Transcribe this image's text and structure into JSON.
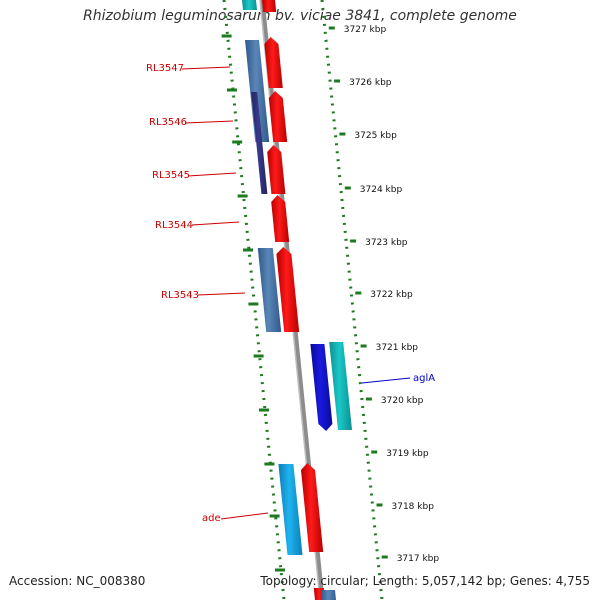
{
  "title": "Rhizobium leguminosarum bv. viciae 3841, complete genome",
  "accession": "Accession: NC_008380",
  "topology": "Topology: circular; Length: 5,057,142 bp; Genes: 4,755",
  "colors": {
    "gene_red": "#ff1a1a",
    "steelblue": "#5a86b8",
    "navy": "#3a3a8c",
    "cyan": "#19c8c8",
    "skyblue": "#1fb4f0",
    "blue": "#1a1ae0",
    "backbone": "#8c8c8c",
    "tick_green": "#1e7a1e",
    "label_red": "#cc0000",
    "label_blue": "#0000cc"
  },
  "ruler": [
    {
      "label": "3727 kbp"
    },
    {
      "label": "3726 kbp"
    },
    {
      "label": "3725 kbp"
    },
    {
      "label": "3724 kbp"
    },
    {
      "label": "3723 kbp"
    },
    {
      "label": "3722 kbp"
    },
    {
      "label": "3721 kbp"
    },
    {
      "label": "3720 kbp"
    },
    {
      "label": "3719 kbp"
    },
    {
      "label": "3718 kbp"
    },
    {
      "label": "3717 kbp"
    }
  ],
  "gene_labels": [
    {
      "name": "RL3547",
      "color": "#cc0000"
    },
    {
      "name": "RL3546",
      "color": "#cc0000"
    },
    {
      "name": "RL3545",
      "color": "#cc0000"
    },
    {
      "name": "RL3544",
      "color": "#cc0000"
    },
    {
      "name": "RL3543",
      "color": "#cc0000"
    },
    {
      "name": "aglA",
      "color": "#0000cc"
    },
    {
      "name": "ade",
      "color": "#cc0000"
    }
  ]
}
